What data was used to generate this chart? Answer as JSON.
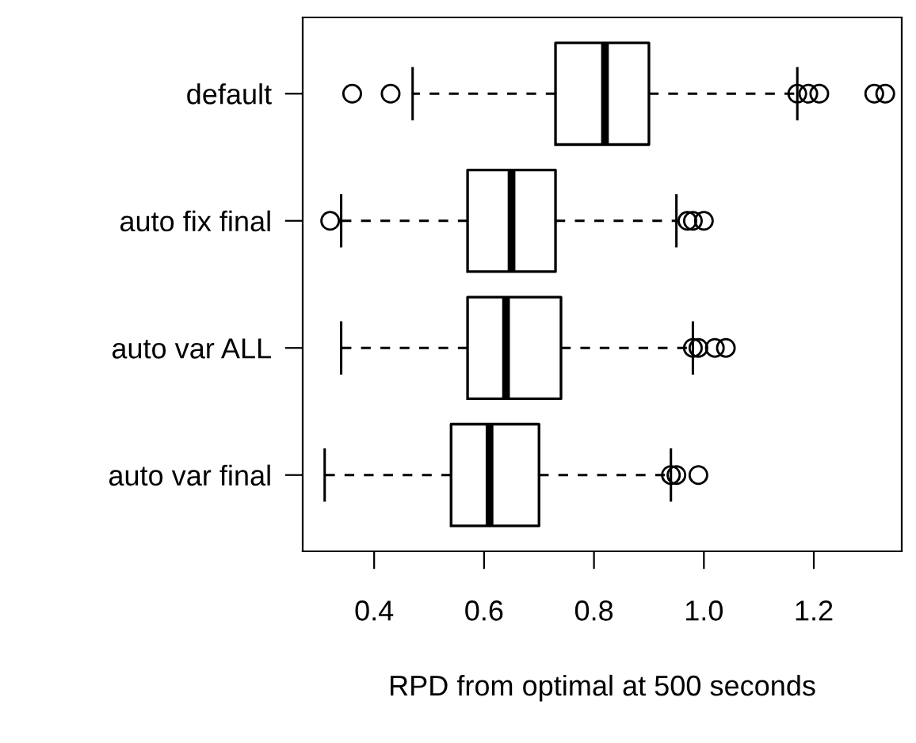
{
  "chart_data": {
    "type": "box",
    "orientation": "horizontal",
    "xlabel": "RPD from optimal at 500 seconds",
    "categories": [
      "default",
      "auto fix final",
      "auto var ALL",
      "auto var final"
    ],
    "boxes": [
      {
        "low": 0.47,
        "q1": 0.73,
        "median": 0.82,
        "q3": 0.9,
        "high": 1.17,
        "outliers": [
          0.36,
          0.43,
          1.17,
          1.19,
          1.21,
          1.31,
          1.33
        ]
      },
      {
        "low": 0.34,
        "q1": 0.57,
        "median": 0.65,
        "q3": 0.73,
        "high": 0.95,
        "outliers": [
          0.32,
          0.97,
          0.98,
          1.0
        ]
      },
      {
        "low": 0.34,
        "q1": 0.57,
        "median": 0.64,
        "q3": 0.74,
        "high": 0.98,
        "outliers": [
          0.98,
          0.99,
          1.02,
          1.04
        ]
      },
      {
        "low": 0.31,
        "q1": 0.54,
        "median": 0.61,
        "q3": 0.7,
        "high": 0.94,
        "outliers": [
          0.94,
          0.95,
          0.99
        ]
      }
    ],
    "xlim": [
      0.27,
      1.36
    ],
    "xticks": [
      {
        "value": 0.4,
        "label": "0.4"
      },
      {
        "value": 0.6,
        "label": "0.6"
      },
      {
        "value": 0.8,
        "label": "0.8"
      },
      {
        "value": 1.0,
        "label": "1.0"
      },
      {
        "value": 1.2,
        "label": "1.2"
      }
    ],
    "grid": false
  }
}
